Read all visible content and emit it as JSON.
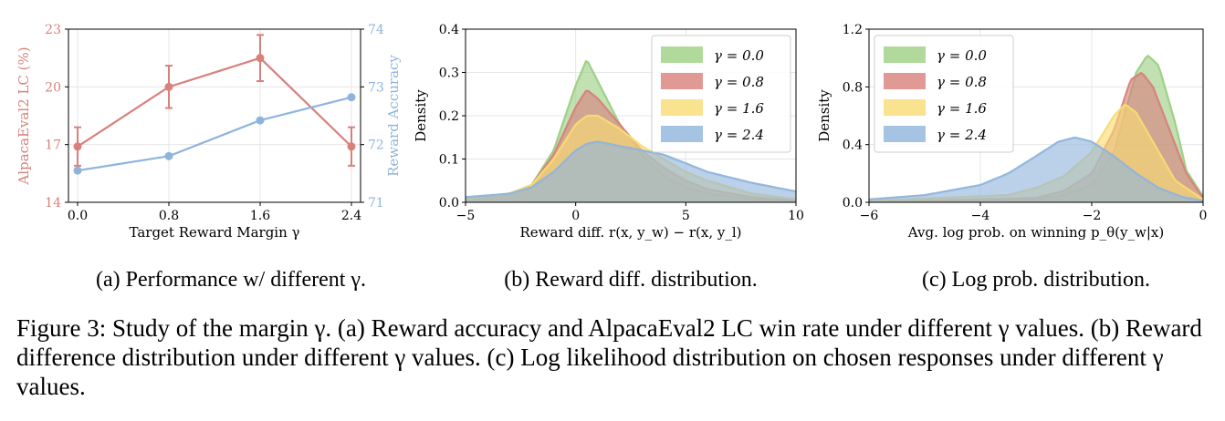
{
  "colors": {
    "red": "#d9807c",
    "blue": "#8fb4dc",
    "green": "#9ccf82",
    "yellow": "#f8dc72",
    "text": "#000000"
  },
  "chart_data": [
    {
      "type": "line",
      "caption": "(a) Performance w/ different γ.",
      "x": [
        0.0,
        0.8,
        1.6,
        2.4
      ],
      "xticks": [
        "0.0",
        "0.8",
        "1.6",
        "2.4"
      ],
      "xlabel": "Target Reward Margin γ",
      "xlim": [
        -0.08,
        2.48
      ],
      "series": [
        {
          "name": "AlpacaEval2 LC (%)",
          "axis": "left",
          "values": [
            16.9,
            20.0,
            21.5,
            16.9
          ],
          "error": [
            1.0,
            1.1,
            1.2,
            1.0
          ]
        },
        {
          "name": "Reward Accuracy",
          "axis": "right",
          "values": [
            71.55,
            71.8,
            72.42,
            72.82
          ]
        }
      ],
      "ylabel_left": "AlpacaEval2 LC (%)",
      "ylim_left": [
        14,
        23
      ],
      "yticks_left": [
        "14",
        "17",
        "20",
        "23"
      ],
      "ylabel_right": "Reward Accuracy",
      "ylim_right": [
        71,
        74
      ],
      "yticks_right": [
        "71",
        "72",
        "73",
        "74"
      ]
    },
    {
      "type": "area",
      "caption": "(b) Reward diff. distribution.",
      "xlabel": "Reward diff. r(x, y_w) − r(x, y_l)",
      "ylabel": "Density",
      "xlim": [
        -5,
        10
      ],
      "ylim": [
        0,
        0.4
      ],
      "xticks": [
        "−5",
        "0",
        "5",
        "10"
      ],
      "yticks": [
        "0.0",
        "0.1",
        "0.2",
        "0.3",
        "0.4"
      ],
      "legend": "top-right",
      "series": [
        {
          "name": "γ = 0.0",
          "color": "green",
          "x": [
            -5,
            -3,
            -2,
            -1,
            0,
            0.5,
            1,
            2,
            3,
            4,
            5,
            6,
            8,
            10
          ],
          "values": [
            0.008,
            0.02,
            0.04,
            0.12,
            0.27,
            0.33,
            0.28,
            0.18,
            0.11,
            0.06,
            0.035,
            0.02,
            0.008,
            0.003
          ]
        },
        {
          "name": "γ = 0.8",
          "color": "red",
          "x": [
            -5,
            -3,
            -2,
            -1,
            0,
            0.5,
            1,
            2,
            3,
            4,
            5,
            6,
            8,
            10
          ],
          "values": [
            0.008,
            0.02,
            0.04,
            0.11,
            0.22,
            0.26,
            0.24,
            0.18,
            0.12,
            0.08,
            0.05,
            0.03,
            0.012,
            0.004
          ]
        },
        {
          "name": "γ = 1.6",
          "color": "yellow",
          "x": [
            -5,
            -3,
            -2,
            -1,
            0,
            0.5,
            1,
            2,
            3,
            4,
            5,
            6,
            8,
            10
          ],
          "values": [
            0.008,
            0.02,
            0.04,
            0.1,
            0.18,
            0.2,
            0.2,
            0.17,
            0.13,
            0.1,
            0.07,
            0.05,
            0.02,
            0.007
          ]
        },
        {
          "name": "γ = 2.4",
          "color": "blue",
          "x": [
            -5,
            -3,
            -2,
            -1,
            0,
            0.5,
            1,
            2,
            3,
            4,
            5,
            6,
            8,
            10
          ],
          "values": [
            0.012,
            0.02,
            0.035,
            0.07,
            0.12,
            0.135,
            0.14,
            0.13,
            0.12,
            0.11,
            0.09,
            0.07,
            0.045,
            0.025
          ]
        }
      ]
    },
    {
      "type": "area",
      "caption": "(c) Log prob. distribution.",
      "xlabel": "Avg. log prob. on winning p_θ(y_w|x)",
      "ylabel": "Density",
      "xlim": [
        -6,
        0
      ],
      "ylim": [
        0,
        1.2
      ],
      "xticks": [
        "−6",
        "−4",
        "−2",
        "0"
      ],
      "yticks": [
        "0.0",
        "0.4",
        "0.8",
        "1.2"
      ],
      "legend": "top-left",
      "series": [
        {
          "name": "γ = 0.0",
          "color": "green",
          "x": [
            -6,
            -3,
            -2.5,
            -2,
            -1.6,
            -1.2,
            -1.0,
            -0.8,
            -0.5,
            -0.3,
            0
          ],
          "values": [
            0,
            0.02,
            0.05,
            0.12,
            0.35,
            0.9,
            1.02,
            0.95,
            0.55,
            0.22,
            0.04
          ]
        },
        {
          "name": "γ = 0.8",
          "color": "red",
          "x": [
            -6,
            -3,
            -2.5,
            -2,
            -1.6,
            -1.3,
            -1.1,
            -0.9,
            -0.6,
            -0.3,
            0
          ],
          "values": [
            0,
            0.03,
            0.08,
            0.2,
            0.5,
            0.85,
            0.9,
            0.8,
            0.5,
            0.2,
            0.03
          ]
        },
        {
          "name": "γ = 1.6",
          "color": "yellow",
          "x": [
            -6,
            -3.5,
            -3,
            -2.5,
            -2,
            -1.6,
            -1.4,
            -1.2,
            -0.9,
            -0.5,
            0
          ],
          "values": [
            0.01,
            0.05,
            0.1,
            0.18,
            0.35,
            0.6,
            0.68,
            0.62,
            0.42,
            0.15,
            0.02
          ]
        },
        {
          "name": "γ = 2.4",
          "color": "blue",
          "x": [
            -6,
            -5,
            -4,
            -3.5,
            -3,
            -2.6,
            -2.3,
            -2.0,
            -1.6,
            -1.2,
            -0.8,
            -0.4,
            0
          ],
          "values": [
            0.02,
            0.05,
            0.12,
            0.2,
            0.32,
            0.42,
            0.45,
            0.42,
            0.32,
            0.2,
            0.1,
            0.04,
            0.01
          ]
        }
      ]
    }
  ],
  "caption_main": "Figure 3: Study of the margin γ. (a) Reward accuracy and AlpacaEval2 LC win rate under different γ values. (b) Reward difference distribution under different γ values. (c) Log likelihood distribution on chosen responses under different γ values."
}
